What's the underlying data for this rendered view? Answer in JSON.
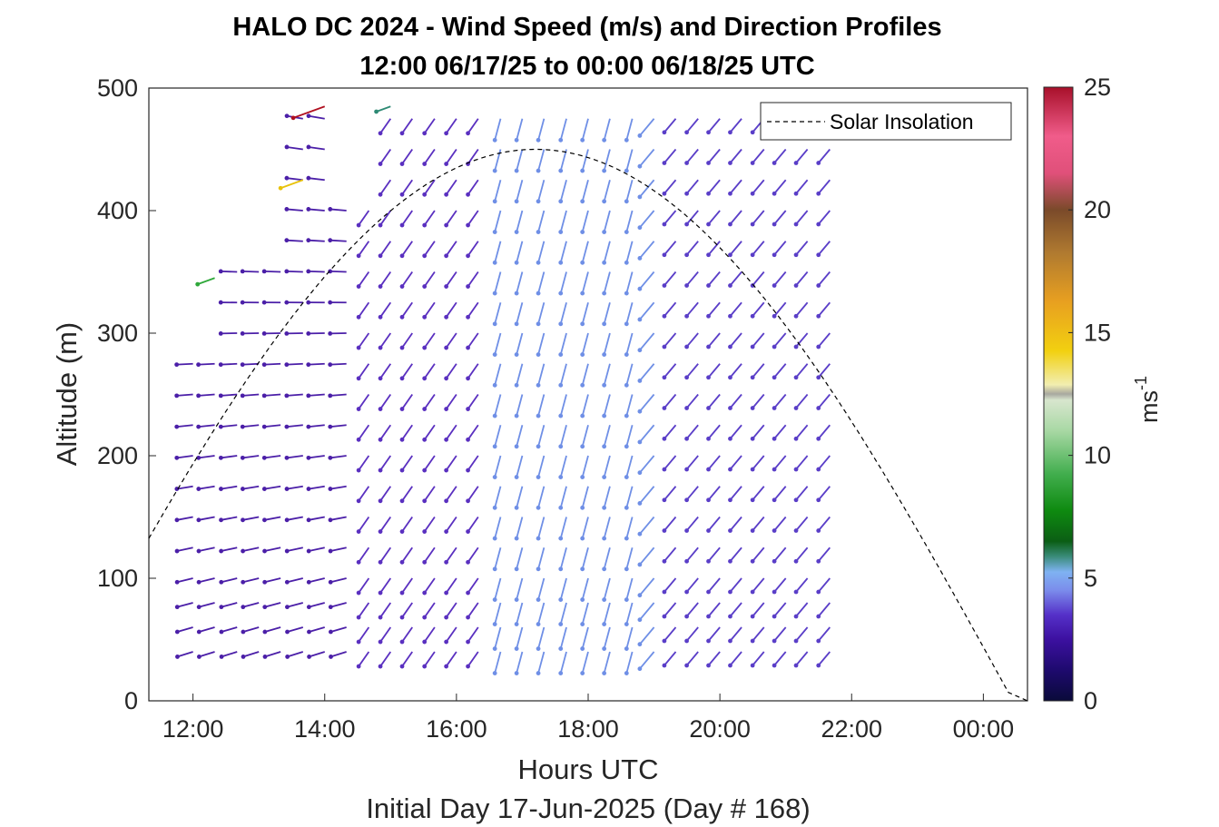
{
  "chart_data": {
    "type": "scatter",
    "subtype": "wind barb / quiver profile",
    "title_line1": "HALO DC 2024 - Wind Speed (m/s) and Direction Profiles",
    "title_line2": "12:00 06/17/25 to 00:00 06/18/25  UTC",
    "xlabel": "Hours UTC",
    "ylabel": "Altitude (m)",
    "footer": "Initial Day 17-Jun-2025 (Day # 168)",
    "xlim_hours": [
      11.33,
      24.67
    ],
    "ylim": [
      0,
      500
    ],
    "x_ticks": [
      {
        "hour": 12,
        "label": "12:00"
      },
      {
        "hour": 14,
        "label": "14:00"
      },
      {
        "hour": 16,
        "label": "16:00"
      },
      {
        "hour": 18,
        "label": "18:00"
      },
      {
        "hour": 20,
        "label": "20:00"
      },
      {
        "hour": 22,
        "label": "22:00"
      },
      {
        "hour": 24,
        "label": "00:00"
      }
    ],
    "y_ticks": [
      0,
      100,
      200,
      300,
      400,
      500
    ],
    "colorbar": {
      "label": "ms",
      "label_exponent": "-1",
      "range": [
        0,
        25
      ],
      "ticks": [
        0,
        5,
        10,
        15,
        20,
        25
      ]
    },
    "legend": {
      "label": "Solar Insolation",
      "style": "dashed",
      "placement": "top-right"
    },
    "solar_insolation_curve": {
      "peak_hour": 17.2,
      "peak_altitude": 450,
      "half_width_hours": 7.25,
      "zero_hour": 24.4
    },
    "time_columns_hours": [
      12.0,
      12.33,
      12.67,
      13.0,
      13.33,
      13.67,
      14.0,
      14.33,
      14.67,
      15.0,
      15.33,
      15.67,
      16.0,
      16.33,
      16.67,
      17.0,
      17.33,
      17.67,
      18.0,
      18.33,
      18.67,
      19.0,
      19.33,
      19.67,
      20.0,
      20.33,
      20.67,
      21.0,
      21.33,
      21.67
    ],
    "altitude_levels_m": [
      40,
      60,
      80,
      100,
      125,
      150,
      175,
      200,
      225,
      250,
      275,
      300,
      325,
      350,
      375,
      400,
      425,
      450,
      475
    ],
    "wind_regimes": [
      {
        "hours": [
          12.0,
          14.5
        ],
        "speed_ms": 2.5,
        "direction_desc": "northwest, shallow",
        "color": "#4B1FA8"
      },
      {
        "hours": [
          14.5,
          16.5
        ],
        "speed_ms": 3.0,
        "direction_desc": "north-northwest",
        "color": "#5A30C0"
      },
      {
        "hours": [
          16.5,
          19.0
        ],
        "speed_ms": 4.5,
        "direction_desc": "north",
        "color": "#6F8FE6"
      },
      {
        "hours": [
          19.0,
          22.0
        ],
        "speed_ms": 3.0,
        "direction_desc": "northwest",
        "color": "#5A3EC8"
      }
    ],
    "notable_barbs": [
      {
        "hour": 14.0,
        "altitude": 485,
        "speed_ms": 24,
        "color": "#B01020"
      },
      {
        "hour": 13.67,
        "altitude": 425,
        "speed_ms": 14.5,
        "color": "#E8C20A"
      },
      {
        "hour": 12.33,
        "altitude": 345,
        "speed_ms": 9,
        "color": "#2FA83A"
      },
      {
        "hour": 15.0,
        "altitude": 485,
        "speed_ms": 6,
        "color": "#2E8A74"
      }
    ]
  }
}
